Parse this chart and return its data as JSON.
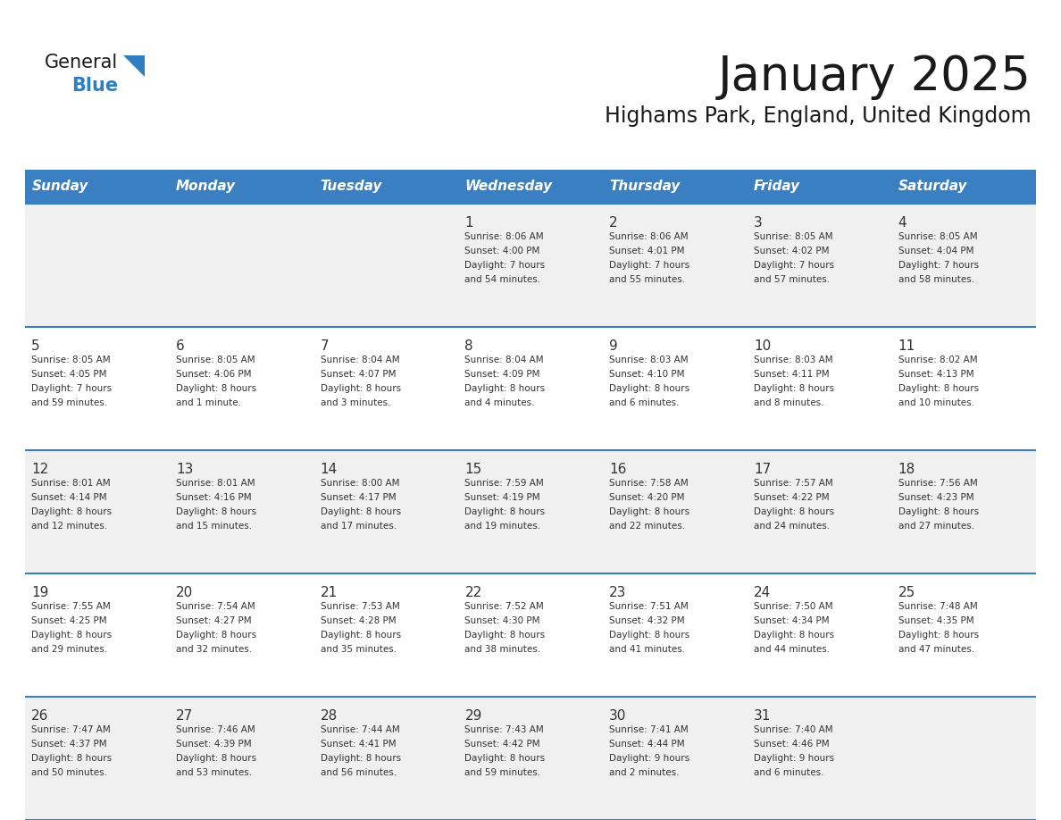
{
  "title": "January 2025",
  "subtitle": "Highams Park, England, United Kingdom",
  "days_of_week": [
    "Sunday",
    "Monday",
    "Tuesday",
    "Wednesday",
    "Thursday",
    "Friday",
    "Saturday"
  ],
  "header_bg": "#3a7fc1",
  "header_text": "#ffffff",
  "row_bg_odd": "#f0f0f0",
  "row_bg_even": "#ffffff",
  "cell_border": "#3a7fc1",
  "title_color": "#1a1a1a",
  "subtitle_color": "#1a1a1a",
  "day_num_color": "#333333",
  "cell_text_color": "#333333",
  "logo_black_color": "#1a1a1a",
  "logo_blue_color": "#2e7fc2",
  "calendar_data": [
    [
      {
        "day": null,
        "sunrise": null,
        "sunset": null,
        "daylight": null
      },
      {
        "day": null,
        "sunrise": null,
        "sunset": null,
        "daylight": null
      },
      {
        "day": null,
        "sunrise": null,
        "sunset": null,
        "daylight": null
      },
      {
        "day": 1,
        "sunrise": "Sunrise: 8:06 AM",
        "sunset": "Sunset: 4:00 PM",
        "daylight": "Daylight: 7 hours\nand 54 minutes."
      },
      {
        "day": 2,
        "sunrise": "Sunrise: 8:06 AM",
        "sunset": "Sunset: 4:01 PM",
        "daylight": "Daylight: 7 hours\nand 55 minutes."
      },
      {
        "day": 3,
        "sunrise": "Sunrise: 8:05 AM",
        "sunset": "Sunset: 4:02 PM",
        "daylight": "Daylight: 7 hours\nand 57 minutes."
      },
      {
        "day": 4,
        "sunrise": "Sunrise: 8:05 AM",
        "sunset": "Sunset: 4:04 PM",
        "daylight": "Daylight: 7 hours\nand 58 minutes."
      }
    ],
    [
      {
        "day": 5,
        "sunrise": "Sunrise: 8:05 AM",
        "sunset": "Sunset: 4:05 PM",
        "daylight": "Daylight: 7 hours\nand 59 minutes."
      },
      {
        "day": 6,
        "sunrise": "Sunrise: 8:05 AM",
        "sunset": "Sunset: 4:06 PM",
        "daylight": "Daylight: 8 hours\nand 1 minute."
      },
      {
        "day": 7,
        "sunrise": "Sunrise: 8:04 AM",
        "sunset": "Sunset: 4:07 PM",
        "daylight": "Daylight: 8 hours\nand 3 minutes."
      },
      {
        "day": 8,
        "sunrise": "Sunrise: 8:04 AM",
        "sunset": "Sunset: 4:09 PM",
        "daylight": "Daylight: 8 hours\nand 4 minutes."
      },
      {
        "day": 9,
        "sunrise": "Sunrise: 8:03 AM",
        "sunset": "Sunset: 4:10 PM",
        "daylight": "Daylight: 8 hours\nand 6 minutes."
      },
      {
        "day": 10,
        "sunrise": "Sunrise: 8:03 AM",
        "sunset": "Sunset: 4:11 PM",
        "daylight": "Daylight: 8 hours\nand 8 minutes."
      },
      {
        "day": 11,
        "sunrise": "Sunrise: 8:02 AM",
        "sunset": "Sunset: 4:13 PM",
        "daylight": "Daylight: 8 hours\nand 10 minutes."
      }
    ],
    [
      {
        "day": 12,
        "sunrise": "Sunrise: 8:01 AM",
        "sunset": "Sunset: 4:14 PM",
        "daylight": "Daylight: 8 hours\nand 12 minutes."
      },
      {
        "day": 13,
        "sunrise": "Sunrise: 8:01 AM",
        "sunset": "Sunset: 4:16 PM",
        "daylight": "Daylight: 8 hours\nand 15 minutes."
      },
      {
        "day": 14,
        "sunrise": "Sunrise: 8:00 AM",
        "sunset": "Sunset: 4:17 PM",
        "daylight": "Daylight: 8 hours\nand 17 minutes."
      },
      {
        "day": 15,
        "sunrise": "Sunrise: 7:59 AM",
        "sunset": "Sunset: 4:19 PM",
        "daylight": "Daylight: 8 hours\nand 19 minutes."
      },
      {
        "day": 16,
        "sunrise": "Sunrise: 7:58 AM",
        "sunset": "Sunset: 4:20 PM",
        "daylight": "Daylight: 8 hours\nand 22 minutes."
      },
      {
        "day": 17,
        "sunrise": "Sunrise: 7:57 AM",
        "sunset": "Sunset: 4:22 PM",
        "daylight": "Daylight: 8 hours\nand 24 minutes."
      },
      {
        "day": 18,
        "sunrise": "Sunrise: 7:56 AM",
        "sunset": "Sunset: 4:23 PM",
        "daylight": "Daylight: 8 hours\nand 27 minutes."
      }
    ],
    [
      {
        "day": 19,
        "sunrise": "Sunrise: 7:55 AM",
        "sunset": "Sunset: 4:25 PM",
        "daylight": "Daylight: 8 hours\nand 29 minutes."
      },
      {
        "day": 20,
        "sunrise": "Sunrise: 7:54 AM",
        "sunset": "Sunset: 4:27 PM",
        "daylight": "Daylight: 8 hours\nand 32 minutes."
      },
      {
        "day": 21,
        "sunrise": "Sunrise: 7:53 AM",
        "sunset": "Sunset: 4:28 PM",
        "daylight": "Daylight: 8 hours\nand 35 minutes."
      },
      {
        "day": 22,
        "sunrise": "Sunrise: 7:52 AM",
        "sunset": "Sunset: 4:30 PM",
        "daylight": "Daylight: 8 hours\nand 38 minutes."
      },
      {
        "day": 23,
        "sunrise": "Sunrise: 7:51 AM",
        "sunset": "Sunset: 4:32 PM",
        "daylight": "Daylight: 8 hours\nand 41 minutes."
      },
      {
        "day": 24,
        "sunrise": "Sunrise: 7:50 AM",
        "sunset": "Sunset: 4:34 PM",
        "daylight": "Daylight: 8 hours\nand 44 minutes."
      },
      {
        "day": 25,
        "sunrise": "Sunrise: 7:48 AM",
        "sunset": "Sunset: 4:35 PM",
        "daylight": "Daylight: 8 hours\nand 47 minutes."
      }
    ],
    [
      {
        "day": 26,
        "sunrise": "Sunrise: 7:47 AM",
        "sunset": "Sunset: 4:37 PM",
        "daylight": "Daylight: 8 hours\nand 50 minutes."
      },
      {
        "day": 27,
        "sunrise": "Sunrise: 7:46 AM",
        "sunset": "Sunset: 4:39 PM",
        "daylight": "Daylight: 8 hours\nand 53 minutes."
      },
      {
        "day": 28,
        "sunrise": "Sunrise: 7:44 AM",
        "sunset": "Sunset: 4:41 PM",
        "daylight": "Daylight: 8 hours\nand 56 minutes."
      },
      {
        "day": 29,
        "sunrise": "Sunrise: 7:43 AM",
        "sunset": "Sunset: 4:42 PM",
        "daylight": "Daylight: 8 hours\nand 59 minutes."
      },
      {
        "day": 30,
        "sunrise": "Sunrise: 7:41 AM",
        "sunset": "Sunset: 4:44 PM",
        "daylight": "Daylight: 9 hours\nand 2 minutes."
      },
      {
        "day": 31,
        "sunrise": "Sunrise: 7:40 AM",
        "sunset": "Sunset: 4:46 PM",
        "daylight": "Daylight: 9 hours\nand 6 minutes."
      },
      {
        "day": null,
        "sunrise": null,
        "sunset": null,
        "daylight": null
      }
    ]
  ]
}
